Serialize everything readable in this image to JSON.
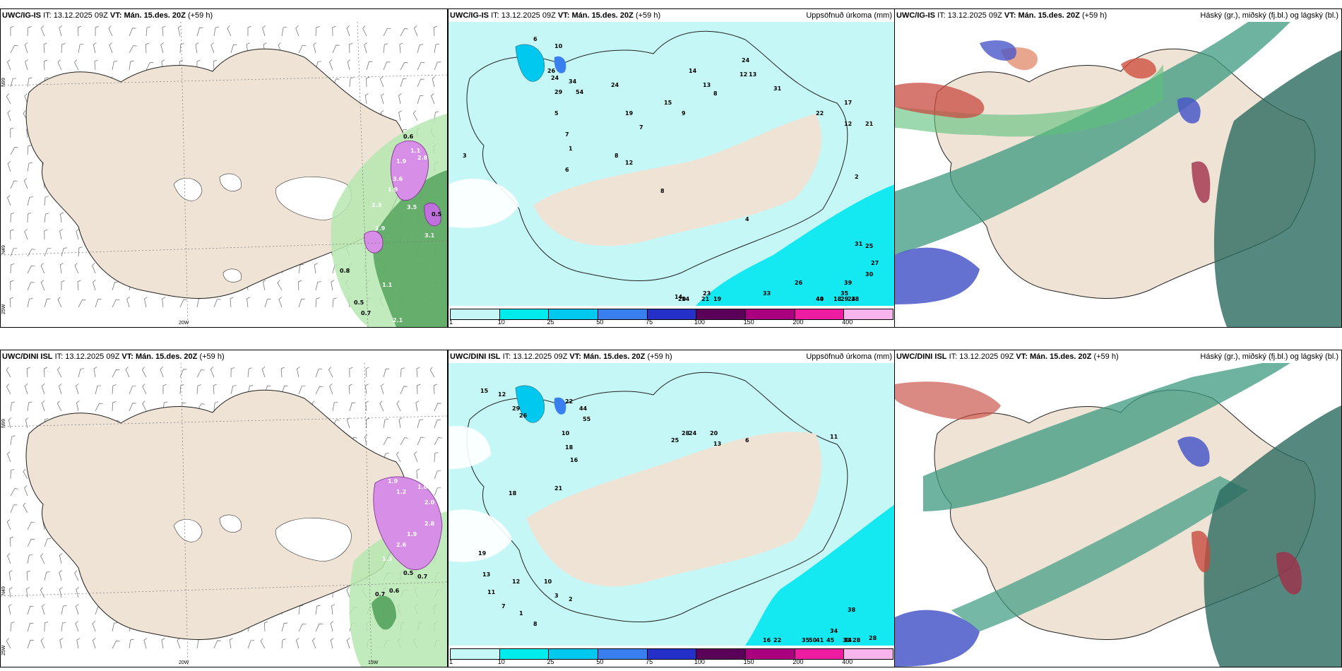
{
  "panels": [
    {
      "model": "UWC/IG-IS",
      "it_label": "IT:",
      "it": "13.12.2025 09Z",
      "vt_label": "VT:",
      "vt": "Mán. 15.des. 20Z",
      "lead": "(+59 h)",
      "subtitle": ""
    },
    {
      "model": "UWC/IG-IS",
      "it_label": "IT:",
      "it": "13.12.2025 09Z",
      "vt_label": "VT:",
      "vt": "Mán. 15.des. 20Z",
      "lead": "(+59 h)",
      "subtitle": "Uppsöfnuð úrkoma (mm)"
    },
    {
      "model": "UWC/IG-IS",
      "it_label": "IT:",
      "it": "13.12.2025 09Z",
      "vt_label": "VT:",
      "vt": "Mán. 15.des. 20Z",
      "lead": "(+59 h)",
      "subtitle": "Háský (gr.), miðský (fj.bl.) og lágský (bl.)"
    },
    {
      "model": "UWC/DINI ISL",
      "it_label": "IT:",
      "it": "13.12.2025 09Z",
      "vt_label": "VT:",
      "vt": "Mán. 15.des. 20Z",
      "lead": "(+59 h)",
      "subtitle": ""
    },
    {
      "model": "UWC/DINI ISL",
      "it_label": "IT:",
      "it": "13.12.2025 09Z",
      "vt_label": "VT:",
      "vt": "Mán. 15.des. 20Z",
      "lead": "(+59 h)",
      "subtitle": "Uppsöfnuð úrkoma (mm)"
    },
    {
      "model": "UWC/DINI ISL",
      "it_label": "IT:",
      "it": "13.12.2025 09Z",
      "vt_label": "VT:",
      "vt": "Mán. 15.des. 20Z",
      "lead": "(+59 h)",
      "subtitle": "Háský (gr.), miðský (fj.bl.) og lágský (bl.)"
    }
  ],
  "colorbar": {
    "labels": [
      "1",
      "10",
      "25",
      "50",
      "75",
      "100",
      "150",
      "200",
      "400"
    ],
    "colors": [
      "#c6f7f7",
      "#00ecec",
      "#00c8ee",
      "#3a7ff0",
      "#2430c8",
      "#5a0058",
      "#aa0080",
      "#ee1ca0",
      "#f8b4ec"
    ]
  },
  "wind_panels": {
    "top": {
      "grid_labels": [
        "N99",
        "N49",
        "25W",
        "20W"
      ],
      "precip_values": [
        "0.6",
        "1.1",
        "1.9",
        "2.8",
        "3.6",
        "1.9",
        "3.5",
        "0.5",
        "2.3",
        "1.9",
        "3.1",
        "0.8",
        "1.1",
        "0.5",
        "0.7",
        "2.1"
      ]
    },
    "bottom": {
      "grid_labels": [
        "N99",
        "N49",
        "25W",
        "20W",
        "15W"
      ],
      "precip_values": [
        "1.9",
        "1.2",
        "1.8",
        "2.0",
        "2.8",
        "1.9",
        "2.6",
        "1.3",
        "0.5",
        "0.7",
        "0.7",
        "0.6"
      ]
    }
  },
  "precip_panels": {
    "top": {
      "values": [
        "6",
        "10",
        "26",
        "24",
        "34",
        "54",
        "24",
        "8",
        "3",
        "12",
        "7",
        "19",
        "15",
        "14",
        "13",
        "13",
        "12",
        "8",
        "9",
        "24",
        "31",
        "22",
        "12",
        "17",
        "21",
        "2",
        "31",
        "25",
        "27",
        "30",
        "39",
        "35",
        "24",
        "29",
        "26",
        "33",
        "40",
        "23",
        "14",
        "14",
        "21",
        "19",
        "20",
        "18",
        "38",
        "44",
        "29",
        "5",
        "7",
        "1",
        "6",
        "8",
        "4"
      ]
    },
    "bottom": {
      "values": [
        "15",
        "12",
        "29",
        "26",
        "22",
        "44",
        "55",
        "10",
        "18",
        "16",
        "21",
        "18",
        "28",
        "25",
        "24",
        "20",
        "13",
        "6",
        "11",
        "38",
        "34",
        "33",
        "28",
        "34",
        "28",
        "45",
        "50",
        "22",
        "41",
        "35",
        "16",
        "19",
        "13",
        "11",
        "12",
        "10",
        "3",
        "2",
        "7",
        "1",
        "8"
      ]
    }
  }
}
